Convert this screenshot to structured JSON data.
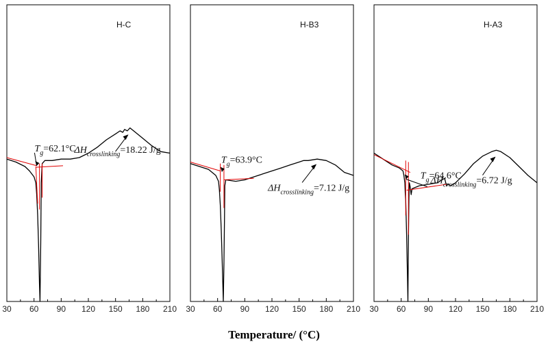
{
  "chart_data": {
    "type": "line",
    "xlabel": "Temperature/ (°C)",
    "xlim": [
      30,
      210
    ],
    "xticks": [
      30,
      60,
      90,
      120,
      150,
      180,
      210
    ],
    "y_axis_shown": false,
    "grid": false,
    "colors": {
      "curve": "#000000",
      "tangent": "#e00000"
    },
    "panels": [
      {
        "label": "H-C",
        "curve": [
          [
            30,
            -0.04
          ],
          [
            40,
            -0.06
          ],
          [
            50,
            -0.09
          ],
          [
            55,
            -0.12
          ],
          [
            60,
            -0.16
          ],
          [
            62,
            -0.2
          ],
          [
            63,
            -0.28
          ],
          [
            64,
            -0.42
          ],
          [
            65,
            -0.62
          ],
          [
            66,
            -0.88
          ],
          [
            66.6,
            -1.0
          ],
          [
            67,
            -0.82
          ],
          [
            67.4,
            -0.6
          ],
          [
            68,
            -0.2
          ],
          [
            69,
            -0.07
          ],
          [
            72,
            -0.05
          ],
          [
            80,
            -0.05
          ],
          [
            90,
            -0.04
          ],
          [
            100,
            -0.04
          ],
          [
            110,
            -0.03
          ],
          [
            120,
            0.0
          ],
          [
            130,
            0.04
          ],
          [
            140,
            0.09
          ],
          [
            150,
            0.13
          ],
          [
            155,
            0.15
          ],
          [
            158,
            0.14
          ],
          [
            160,
            0.16
          ],
          [
            163,
            0.15
          ],
          [
            166,
            0.17
          ],
          [
            170,
            0.15
          ],
          [
            180,
            0.1
          ],
          [
            190,
            0.05
          ],
          [
            200,
            0.01
          ],
          [
            210,
            0.0
          ]
        ],
        "tangents": [
          {
            "from": [
              30,
              -0.03
            ],
            "to": [
              63,
              -0.085
            ]
          },
          {
            "from": [
              62,
              -0.095
            ],
            "to": [
              92,
              -0.085
            ]
          },
          {
            "from": [
              62,
              -0.09
            ],
            "to": [
              64,
              -0.34
            ]
          },
          {
            "from": [
              66,
              -0.07
            ],
            "to": [
              66,
              -0.38
            ]
          },
          {
            "from": [
              69,
              -0.07
            ],
            "to": [
              69,
              -0.3
            ]
          }
        ],
        "tg": {
          "label": "T",
          "sub": "g",
          "value": "=62.1°C",
          "x": 62.1,
          "y": -0.09
        },
        "dh": {
          "label": "ΔH",
          "sub": "crosslinking",
          "value": "=18.22 J/g",
          "x": 165,
          "y": 0.14
        }
      },
      {
        "label": "H-B3",
        "curve": [
          [
            30,
            -0.07
          ],
          [
            40,
            -0.09
          ],
          [
            50,
            -0.11
          ],
          [
            58,
            -0.15
          ],
          [
            61,
            -0.19
          ],
          [
            62,
            -0.25
          ],
          [
            63,
            -0.35
          ],
          [
            64,
            -0.52
          ],
          [
            65,
            -0.72
          ],
          [
            66.3,
            -1.0
          ],
          [
            67,
            -0.75
          ],
          [
            67.6,
            -0.45
          ],
          [
            68,
            -0.22
          ],
          [
            69,
            -0.18
          ],
          [
            80,
            -0.19
          ],
          [
            90,
            -0.18
          ],
          [
            100,
            -0.16
          ],
          [
            110,
            -0.14
          ],
          [
            120,
            -0.12
          ],
          [
            130,
            -0.1
          ],
          [
            140,
            -0.08
          ],
          [
            150,
            -0.06
          ],
          [
            155,
            -0.05
          ],
          [
            160,
            -0.05
          ],
          [
            170,
            -0.04
          ],
          [
            180,
            -0.05
          ],
          [
            190,
            -0.08
          ],
          [
            200,
            -0.13
          ],
          [
            210,
            -0.15
          ]
        ],
        "tangents": [
          {
            "from": [
              30,
              -0.06
            ],
            "to": [
              63,
              -0.12
            ]
          },
          {
            "from": [
              63,
              -0.07
            ],
            "to": [
              63,
              -0.26
            ]
          },
          {
            "from": [
              67,
              -0.08
            ],
            "to": [
              67,
              -0.37
            ]
          },
          {
            "from": [
              67,
              -0.18
            ],
            "to": [
              100,
              -0.17
            ]
          }
        ],
        "tg": {
          "label": "T",
          "sub": "g",
          "value": "=63.9°C",
          "x": 63.9,
          "y": -0.13
        },
        "dh": {
          "label": "ΔH",
          "sub": "crosslinking",
          "value": "=7.12 J/g",
          "x": 170,
          "y": -0.06
        }
      },
      {
        "label": "H-A3",
        "curve": [
          [
            30,
            0.0
          ],
          [
            40,
            -0.04
          ],
          [
            50,
            -0.08
          ],
          [
            58,
            -0.1
          ],
          [
            62,
            -0.12
          ],
          [
            63,
            -0.15
          ],
          [
            64,
            -0.2
          ],
          [
            64.6,
            -0.28
          ],
          [
            65,
            -0.32
          ],
          [
            66,
            -0.55
          ],
          [
            67,
            -0.85
          ],
          [
            67.4,
            -1.0
          ],
          [
            68,
            -0.6
          ],
          [
            68.6,
            -0.3
          ],
          [
            69,
            -0.2
          ],
          [
            70,
            -0.23
          ],
          [
            71,
            -0.28
          ],
          [
            72,
            -0.24
          ],
          [
            80,
            -0.22
          ],
          [
            90,
            -0.21
          ],
          [
            100,
            -0.2
          ],
          [
            105,
            -0.18
          ],
          [
            108,
            -0.17
          ],
          [
            110,
            -0.22
          ],
          [
            112,
            -0.21
          ],
          [
            115,
            -0.22
          ],
          [
            120,
            -0.2
          ],
          [
            130,
            -0.14
          ],
          [
            140,
            -0.07
          ],
          [
            150,
            -0.02
          ],
          [
            160,
            0.01
          ],
          [
            165,
            0.02
          ],
          [
            170,
            0.01
          ],
          [
            180,
            -0.03
          ],
          [
            190,
            -0.09
          ],
          [
            200,
            -0.15
          ],
          [
            210,
            -0.2
          ]
        ],
        "tangents": [
          {
            "from": [
              30,
              -0.01
            ],
            "to": [
              70,
              -0.13
            ]
          },
          {
            "from": [
              65,
              -0.05
            ],
            "to": [
              65,
              -0.42
            ]
          },
          {
            "from": [
              68,
              -0.06
            ],
            "to": [
              68,
              -0.55
            ]
          },
          {
            "from": [
              66,
              -0.25
            ],
            "to": [
              110,
              -0.21
            ]
          }
        ],
        "tg": {
          "label": "T",
          "sub": "g",
          "value": "=64.6°C",
          "x": 64.6,
          "y": -0.18
        },
        "dh": {
          "label": "ΔH",
          "sub": "crosslinking",
          "value": "=6.72 J/g",
          "x": 165,
          "y": -0.01
        }
      }
    ]
  }
}
